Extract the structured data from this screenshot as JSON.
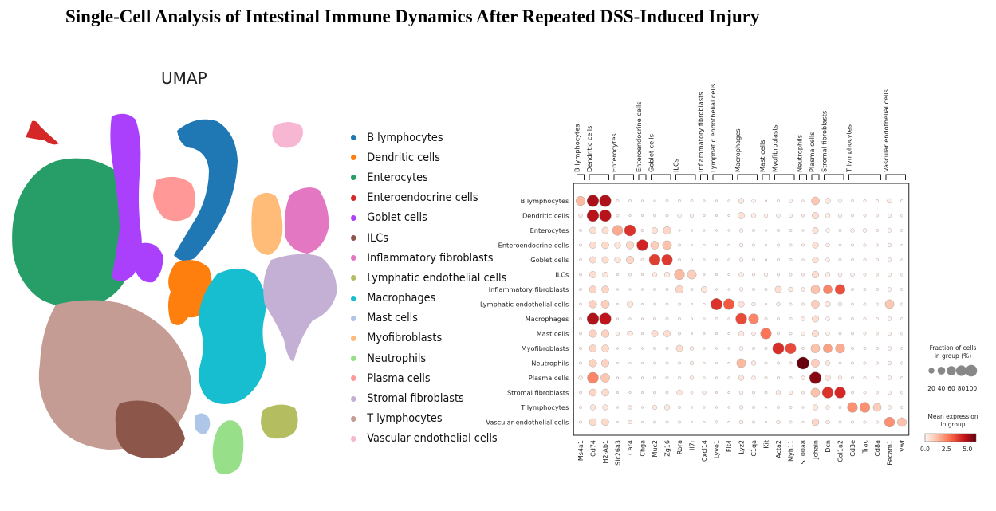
{
  "title": "Single-Cell Analysis of Intestinal Immune Dynamics After Repeated DSS-Induced Injury",
  "umap": {
    "title": "UMAP",
    "clusters": [
      {
        "name": "B lymphocytes",
        "color": "#1f77b4"
      },
      {
        "name": "Dendritic cells",
        "color": "#ff7f0e"
      },
      {
        "name": "Enterocytes",
        "color": "#279e68"
      },
      {
        "name": "Enteroendocrine cells",
        "color": "#d62728"
      },
      {
        "name": "Goblet cells",
        "color": "#aa40fc"
      },
      {
        "name": "ILCs",
        "color": "#8c564b"
      },
      {
        "name": "Inflammatory fibroblasts",
        "color": "#e377c2"
      },
      {
        "name": "Lymphatic endothelial cells",
        "color": "#b5bd61"
      },
      {
        "name": "Macrophages",
        "color": "#17becf"
      },
      {
        "name": "Mast cells",
        "color": "#aec7e8"
      },
      {
        "name": "Myofibroblasts",
        "color": "#ffbb78"
      },
      {
        "name": "Neutrophils",
        "color": "#98df8a"
      },
      {
        "name": "Plasma cells",
        "color": "#ff9896"
      },
      {
        "name": "Stromal fibroblasts",
        "color": "#c5b0d5"
      },
      {
        "name": "T lymphocytes",
        "color": "#c49c94"
      },
      {
        "name": "Vascular endothelial cells",
        "color": "#f7b6d2"
      }
    ]
  },
  "chart_data": {
    "type": "dotplot",
    "groups": [
      "B lymphocytes",
      "Dendritic cells",
      "Enterocytes",
      "Enteroendocrine cells",
      "Goblet cells",
      "ILCs",
      "Inflammatory fibroblasts",
      "Lymphatic endothelial cells",
      "Macrophages",
      "Mast cells",
      "Myofibroblasts",
      "Neutrophils",
      "Plasma cells",
      "Stromal fibroblasts",
      "T lymphocytes",
      "Vascular endothelial cells"
    ],
    "genes": [
      "Ms4a1",
      "Cd74",
      "H2-Ab1",
      "Slc26a3",
      "Car4",
      "Chga",
      "Muc2",
      "Zg16",
      "Rora",
      "Il7r",
      "Cxcl14",
      "Lyve1",
      "Flt4",
      "Lyz2",
      "C1qa",
      "Kit",
      "Acta2",
      "Myh11",
      "S100a8",
      "Jchain",
      "Dcn",
      "Col1a2",
      "Cd3e",
      "Trac",
      "Cd8a",
      "Pecam1",
      "Vwf"
    ],
    "gene_groups": [
      {
        "label": "B lymphocytes",
        "genes": [
          "Ms4a1"
        ]
      },
      {
        "label": "Dendritic cells",
        "genes": [
          "Cd74",
          "H2-Ab1"
        ]
      },
      {
        "label": "Enterocytes",
        "genes": [
          "Slc26a3",
          "Car4"
        ]
      },
      {
        "label": "Enteroendocrine cells",
        "genes": [
          "Chga"
        ]
      },
      {
        "label": "Goblet cells",
        "genes": [
          "Muc2",
          "Zg16"
        ]
      },
      {
        "label": "ILCs",
        "genes": [
          "Rora",
          "Il7r"
        ]
      },
      {
        "label": "Inflammatory fibroblasts",
        "genes": [
          "Cxcl14"
        ]
      },
      {
        "label": "Lymphatic endothelial cells",
        "genes": [
          "Lyve1",
          "Flt4"
        ]
      },
      {
        "label": "Macrophages",
        "genes": [
          "Lyz2",
          "C1qa"
        ]
      },
      {
        "label": "Mast cells",
        "genes": [
          "Kit"
        ]
      },
      {
        "label": "Myofibroblasts",
        "genes": [
          "Acta2",
          "Myh11"
        ]
      },
      {
        "label": "Neutrophils",
        "genes": [
          "S100a8"
        ]
      },
      {
        "label": "Plasma cells",
        "genes": [
          "Jchain"
        ]
      },
      {
        "label": "Stromal fibroblasts",
        "genes": [
          "Dcn",
          "Col1a2"
        ]
      },
      {
        "label": "T lymphocytes",
        "genes": [
          "Cd3e",
          "Trac",
          "Cd8a"
        ]
      },
      {
        "label": "Vascular endothelial cells",
        "genes": [
          "Pecam1",
          "Vwf"
        ]
      }
    ],
    "fraction_percent": [
      [
        60,
        95,
        95,
        5,
        5,
        3,
        3,
        5,
        5,
        5,
        3,
        3,
        3,
        20,
        10,
        3,
        5,
        10,
        3,
        45,
        20,
        10,
        5,
        5,
        5,
        15,
        5
      ],
      [
        10,
        95,
        95,
        5,
        3,
        3,
        5,
        5,
        10,
        10,
        3,
        3,
        3,
        30,
        15,
        10,
        10,
        10,
        5,
        30,
        15,
        10,
        5,
        5,
        5,
        10,
        5
      ],
      [
        5,
        30,
        30,
        70,
        85,
        5,
        25,
        40,
        3,
        3,
        3,
        3,
        3,
        10,
        5,
        3,
        5,
        5,
        3,
        25,
        10,
        5,
        10,
        10,
        5,
        10,
        5
      ],
      [
        5,
        30,
        35,
        25,
        40,
        85,
        45,
        55,
        5,
        3,
        3,
        3,
        3,
        10,
        5,
        3,
        5,
        5,
        5,
        25,
        10,
        5,
        5,
        5,
        5,
        10,
        3
      ],
      [
        5,
        30,
        30,
        25,
        40,
        5,
        85,
        80,
        5,
        3,
        3,
        3,
        3,
        10,
        5,
        3,
        5,
        5,
        3,
        25,
        10,
        5,
        5,
        5,
        5,
        10,
        3
      ],
      [
        5,
        30,
        20,
        3,
        5,
        3,
        15,
        20,
        70,
        55,
        3,
        3,
        3,
        15,
        5,
        10,
        5,
        5,
        5,
        30,
        15,
        10,
        10,
        5,
        5,
        10,
        5
      ],
      [
        5,
        35,
        35,
        3,
        3,
        3,
        5,
        5,
        40,
        5,
        25,
        3,
        3,
        10,
        5,
        5,
        30,
        15,
        10,
        55,
        55,
        70,
        5,
        5,
        5,
        10,
        5
      ],
      [
        5,
        40,
        45,
        3,
        25,
        3,
        5,
        5,
        5,
        3,
        3,
        90,
        80,
        25,
        10,
        3,
        10,
        5,
        5,
        45,
        20,
        10,
        5,
        5,
        5,
        55,
        5
      ],
      [
        5,
        95,
        95,
        3,
        3,
        3,
        5,
        5,
        5,
        3,
        3,
        5,
        3,
        85,
        70,
        5,
        5,
        5,
        10,
        30,
        10,
        5,
        5,
        5,
        5,
        10,
        5
      ],
      [
        5,
        40,
        40,
        10,
        20,
        3,
        30,
        30,
        5,
        3,
        3,
        3,
        3,
        20,
        10,
        80,
        5,
        5,
        10,
        30,
        10,
        5,
        5,
        5,
        5,
        10,
        5
      ],
      [
        5,
        35,
        35,
        3,
        3,
        3,
        5,
        5,
        30,
        10,
        3,
        3,
        3,
        10,
        5,
        5,
        90,
        80,
        5,
        55,
        55,
        60,
        5,
        5,
        5,
        10,
        5
      ],
      [
        5,
        40,
        40,
        3,
        3,
        3,
        5,
        5,
        5,
        10,
        3,
        3,
        3,
        55,
        15,
        5,
        5,
        5,
        100,
        45,
        15,
        5,
        5,
        5,
        5,
        10,
        5
      ],
      [
        10,
        85,
        55,
        3,
        3,
        3,
        5,
        5,
        5,
        10,
        3,
        3,
        3,
        20,
        10,
        5,
        5,
        5,
        10,
        95,
        20,
        10,
        5,
        5,
        5,
        10,
        5
      ],
      [
        5,
        35,
        35,
        3,
        3,
        3,
        5,
        5,
        20,
        5,
        10,
        3,
        3,
        10,
        5,
        5,
        15,
        10,
        5,
        55,
        85,
        85,
        5,
        5,
        5,
        10,
        5
      ],
      [
        5,
        20,
        20,
        3,
        10,
        3,
        15,
        20,
        5,
        3,
        3,
        3,
        3,
        10,
        5,
        3,
        5,
        5,
        3,
        20,
        10,
        5,
        70,
        70,
        45,
        10,
        5
      ],
      [
        5,
        35,
        35,
        3,
        10,
        3,
        5,
        5,
        5,
        3,
        3,
        5,
        3,
        10,
        5,
        3,
        10,
        5,
        3,
        35,
        10,
        5,
        5,
        5,
        5,
        70,
        55
      ]
    ],
    "mean_expression": [
      [
        1.5,
        5.0,
        4.9,
        0.1,
        0.1,
        0.1,
        0.1,
        0.1,
        0.1,
        0.1,
        0.1,
        0.1,
        0.1,
        0.3,
        0.1,
        0.1,
        0.1,
        0.1,
        0.1,
        1.2,
        0.3,
        0.1,
        0.1,
        0.1,
        0.1,
        0.2,
        0.1
      ],
      [
        0.2,
        4.8,
        4.8,
        0.1,
        0.1,
        0.1,
        0.1,
        0.1,
        0.1,
        0.1,
        0.1,
        0.1,
        0.1,
        0.5,
        0.2,
        0.1,
        0.1,
        0.1,
        0.1,
        0.6,
        0.2,
        0.1,
        0.1,
        0.1,
        0.1,
        0.1,
        0.1
      ],
      [
        0.1,
        0.6,
        0.6,
        1.8,
        4.0,
        0.1,
        0.5,
        0.8,
        0.1,
        0.1,
        0.1,
        0.1,
        0.1,
        0.1,
        0.1,
        0.1,
        0.1,
        0.1,
        0.1,
        0.5,
        0.1,
        0.1,
        0.1,
        0.1,
        0.1,
        0.1,
        0.1
      ],
      [
        0.1,
        0.6,
        0.7,
        0.4,
        0.8,
        4.3,
        1.0,
        1.3,
        0.1,
        0.1,
        0.1,
        0.1,
        0.1,
        0.1,
        0.1,
        0.1,
        0.1,
        0.1,
        0.1,
        0.5,
        0.1,
        0.1,
        0.1,
        0.1,
        0.1,
        0.1,
        0.1
      ],
      [
        0.1,
        0.6,
        0.6,
        0.4,
        0.8,
        0.1,
        3.8,
        3.9,
        0.1,
        0.1,
        0.1,
        0.1,
        0.1,
        0.1,
        0.1,
        0.1,
        0.1,
        0.1,
        0.1,
        0.5,
        0.1,
        0.1,
        0.1,
        0.1,
        0.1,
        0.1,
        0.1
      ],
      [
        0.1,
        0.6,
        0.4,
        0.1,
        0.1,
        0.1,
        0.3,
        0.3,
        1.5,
        1.0,
        0.1,
        0.1,
        0.1,
        0.2,
        0.1,
        0.1,
        0.1,
        0.1,
        0.1,
        0.6,
        0.2,
        0.1,
        0.1,
        0.1,
        0.1,
        0.1,
        0.1
      ],
      [
        0.1,
        0.8,
        0.8,
        0.1,
        0.1,
        0.1,
        0.1,
        0.1,
        0.8,
        0.1,
        0.4,
        0.1,
        0.1,
        0.1,
        0.1,
        0.1,
        0.6,
        0.3,
        0.2,
        1.3,
        2.5,
        3.5,
        0.1,
        0.1,
        0.1,
        0.1,
        0.1
      ],
      [
        0.1,
        0.9,
        1.0,
        0.1,
        0.4,
        0.1,
        0.1,
        0.1,
        0.1,
        0.1,
        0.1,
        4.0,
        3.3,
        0.5,
        0.2,
        0.1,
        0.2,
        0.1,
        0.1,
        1.0,
        0.3,
        0.1,
        0.1,
        0.1,
        0.1,
        1.2,
        0.1
      ],
      [
        0.1,
        4.9,
        4.7,
        0.1,
        0.1,
        0.1,
        0.1,
        0.1,
        0.1,
        0.1,
        0.1,
        0.1,
        0.1,
        3.6,
        2.5,
        0.1,
        0.1,
        0.1,
        0.2,
        0.6,
        0.1,
        0.1,
        0.1,
        0.1,
        0.1,
        0.1,
        0.1
      ],
      [
        0.1,
        0.9,
        0.9,
        0.2,
        0.3,
        0.1,
        0.6,
        0.6,
        0.1,
        0.1,
        0.1,
        0.1,
        0.1,
        0.3,
        0.2,
        2.8,
        0.1,
        0.1,
        0.2,
        0.6,
        0.1,
        0.1,
        0.1,
        0.1,
        0.1,
        0.1,
        0.1
      ],
      [
        0.1,
        0.8,
        0.7,
        0.1,
        0.1,
        0.1,
        0.1,
        0.1,
        0.6,
        0.2,
        0.1,
        0.1,
        0.1,
        0.1,
        0.1,
        0.1,
        4.1,
        3.6,
        0.1,
        1.3,
        2.0,
        1.8,
        0.1,
        0.1,
        0.1,
        0.1,
        0.1
      ],
      [
        0.1,
        0.9,
        0.9,
        0.1,
        0.1,
        0.1,
        0.1,
        0.1,
        0.1,
        0.2,
        0.1,
        0.1,
        0.1,
        1.5,
        0.3,
        0.1,
        0.1,
        0.1,
        6.0,
        1.0,
        0.3,
        0.1,
        0.1,
        0.1,
        0.1,
        0.1,
        0.1
      ],
      [
        0.2,
        2.5,
        1.2,
        0.1,
        0.1,
        0.1,
        0.1,
        0.1,
        0.1,
        0.2,
        0.1,
        0.1,
        0.1,
        0.4,
        0.2,
        0.1,
        0.1,
        0.1,
        0.2,
        5.5,
        0.4,
        0.2,
        0.1,
        0.1,
        0.1,
        0.1,
        0.1
      ],
      [
        0.1,
        0.8,
        0.7,
        0.1,
        0.1,
        0.1,
        0.1,
        0.1,
        0.4,
        0.1,
        0.2,
        0.1,
        0.1,
        0.1,
        0.1,
        0.1,
        0.3,
        0.2,
        0.1,
        1.3,
        4.0,
        4.2,
        0.1,
        0.1,
        0.1,
        0.1,
        0.1
      ],
      [
        0.1,
        0.4,
        0.4,
        0.1,
        0.2,
        0.1,
        0.3,
        0.3,
        0.1,
        0.1,
        0.1,
        0.1,
        0.1,
        0.2,
        0.1,
        0.1,
        0.1,
        0.1,
        0.1,
        0.4,
        0.2,
        0.1,
        2.3,
        2.3,
        1.0,
        0.1,
        0.1
      ],
      [
        0.1,
        0.7,
        0.7,
        0.1,
        0.2,
        0.1,
        0.1,
        0.1,
        0.1,
        0.1,
        0.1,
        0.1,
        0.1,
        0.2,
        0.1,
        0.1,
        0.2,
        0.1,
        0.1,
        0.8,
        0.2,
        0.1,
        0.1,
        0.1,
        0.1,
        2.3,
        1.3
      ]
    ],
    "size_legend": {
      "title": "Fraction of cells\nin group (%)",
      "ticks": [
        20,
        40,
        60,
        80,
        100
      ]
    },
    "color_legend": {
      "title": "Mean expression\nin group",
      "ticks": [
        "0.0",
        "2.5",
        "5.0"
      ],
      "range": [
        0,
        6
      ],
      "colormap": "Reds"
    }
  }
}
